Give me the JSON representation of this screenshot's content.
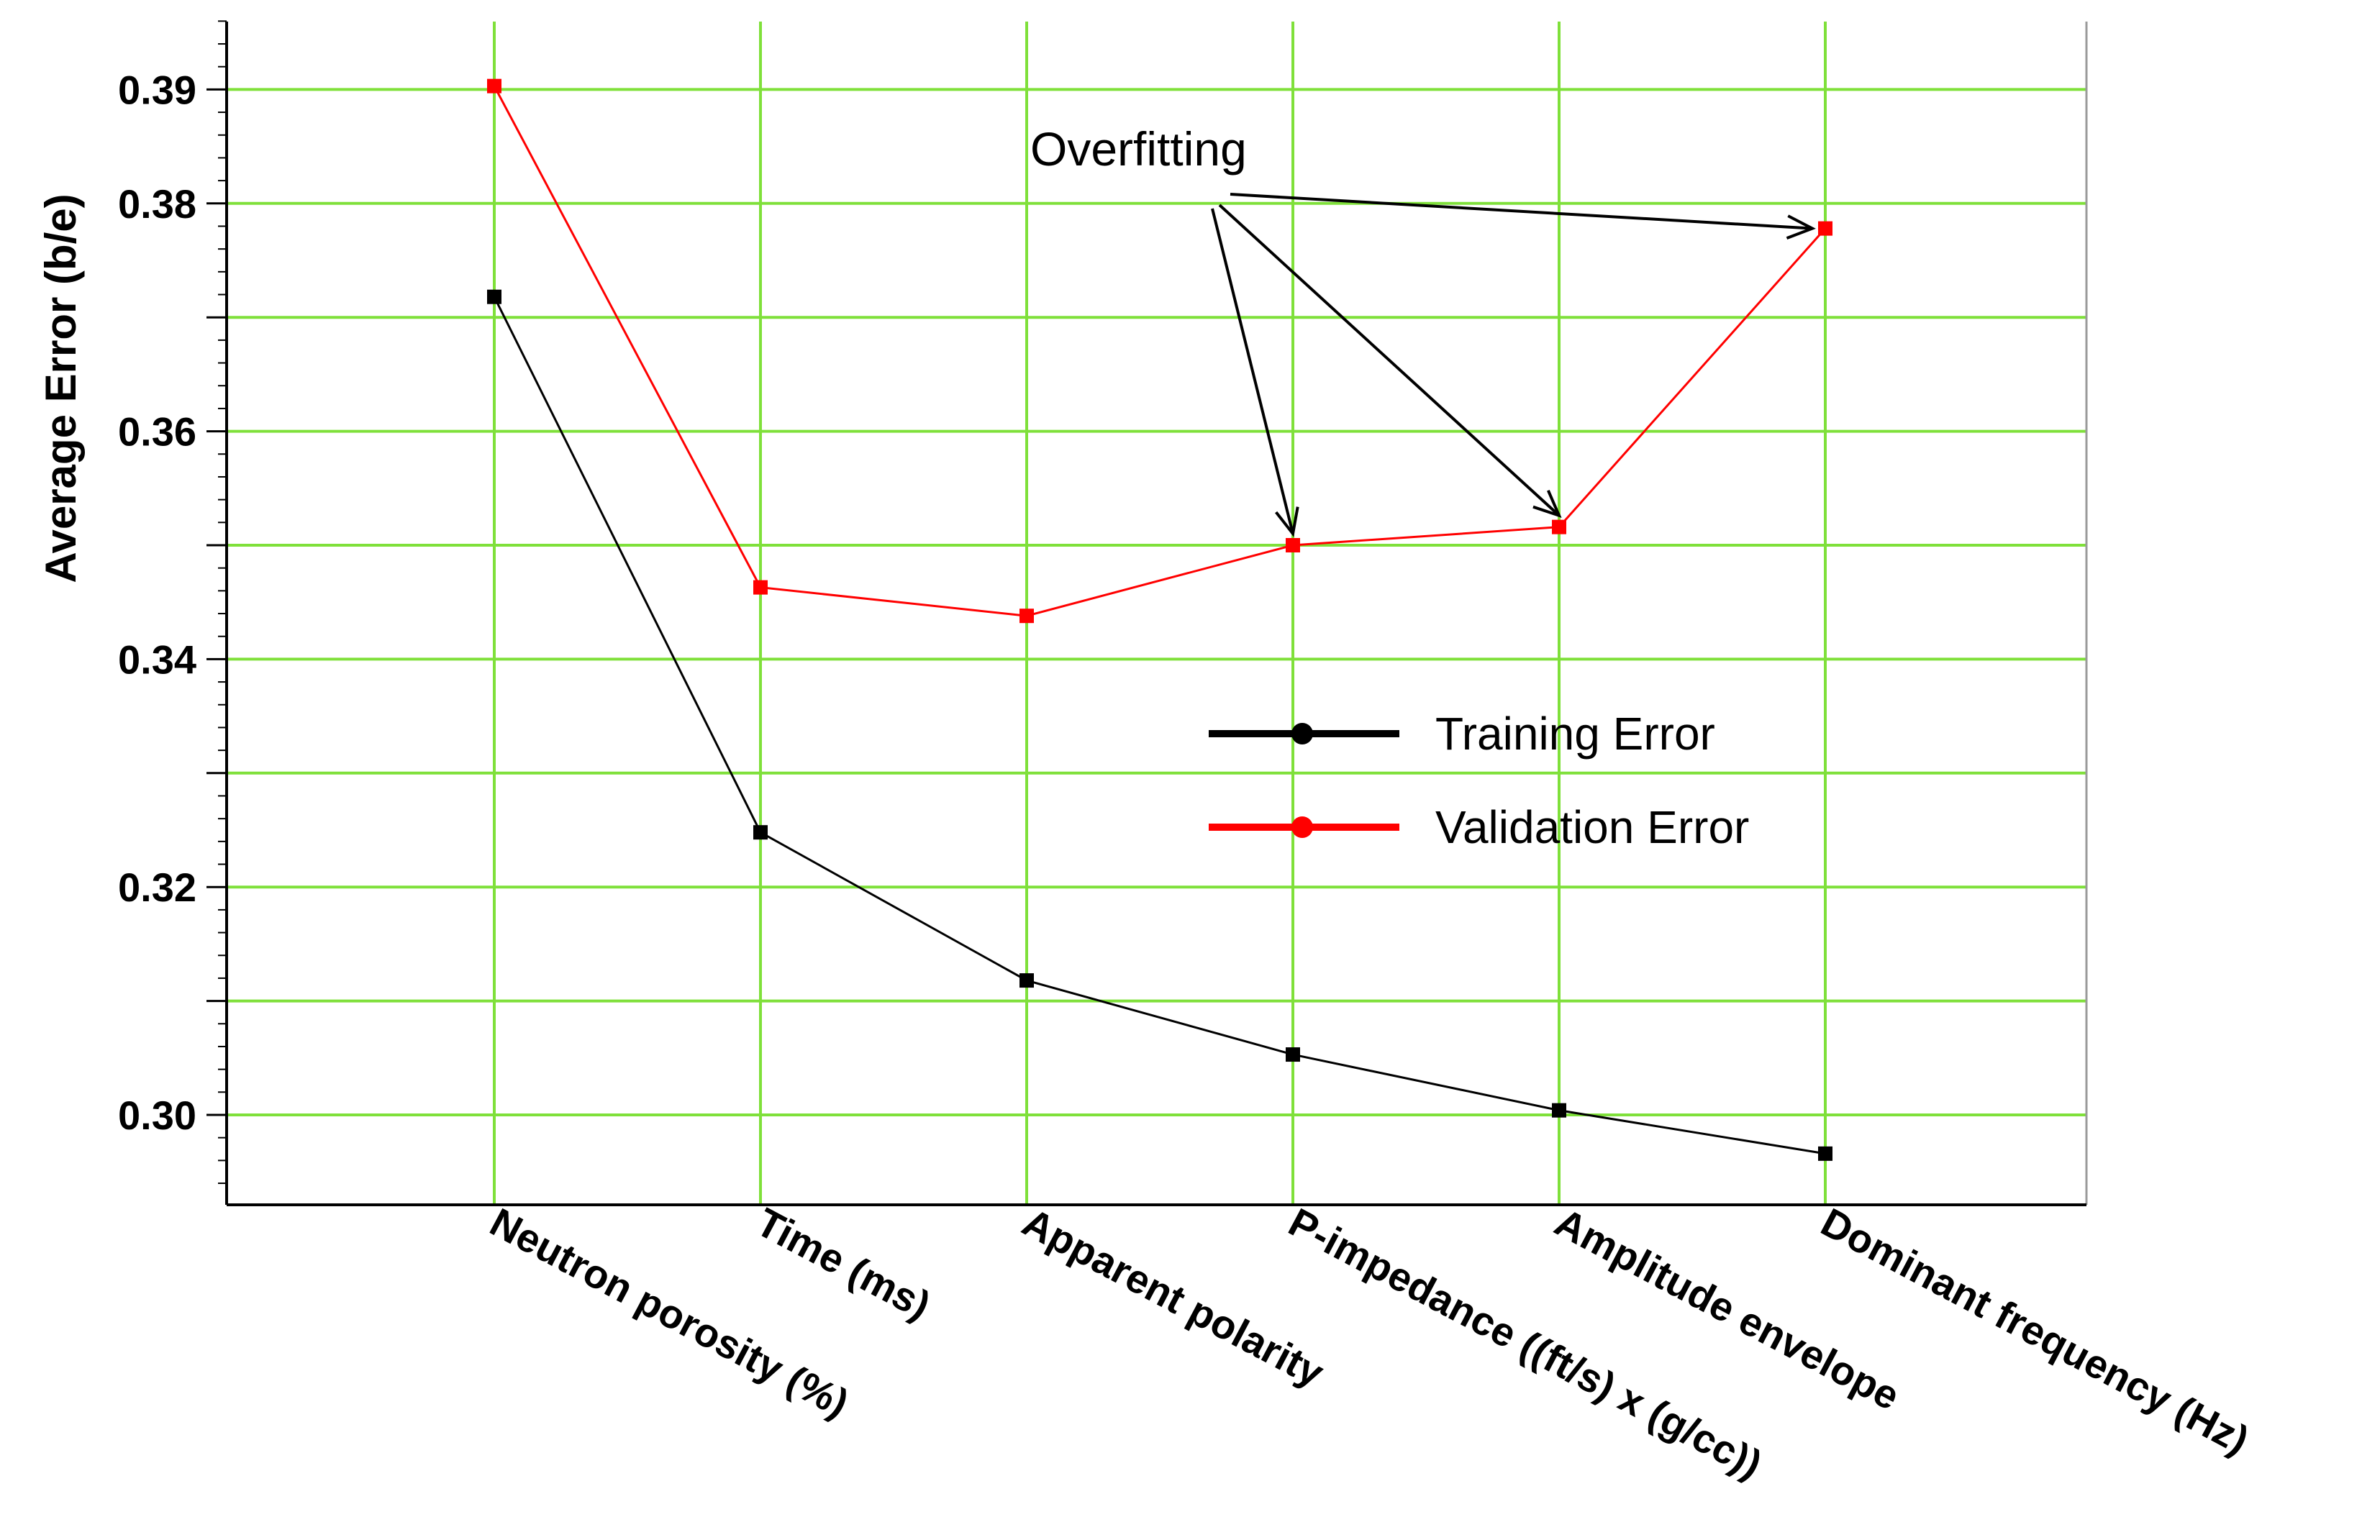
{
  "chart_data": {
    "type": "line",
    "title": "",
    "xlabel": "",
    "ylabel": "Average Error (b/e)",
    "categories": [
      "Neutron porosity (%)",
      "Time (ms)",
      "Apparent polarity",
      "P-impedance ((ft/s) x (g/cc))",
      "Amplitude envelope",
      "Dominant frequency (Hz)"
    ],
    "ylim": [
      0.293,
      0.3965
    ],
    "yticks": [
      0.3,
      0.32,
      0.34,
      0.36,
      0.38,
      0.39
    ],
    "ytick_labels": [
      "0.30",
      "0.32",
      "0.34",
      "0.36",
      "0.38",
      "0.39"
    ],
    "grid": true,
    "legend_position": "center-right",
    "series": [
      {
        "name": "Training Error",
        "color": "#000000",
        "values": [
          0.3718,
          0.3248,
          0.3118,
          0.3053,
          0.3004,
          0.2966
        ]
      },
      {
        "name": "Validation Error",
        "color": "#ff0000",
        "values": [
          0.3903,
          0.3463,
          0.3438,
          0.35,
          0.3516,
          0.3778
        ]
      }
    ],
    "annotation": {
      "text": "Overfitting",
      "targets": [
        3,
        4,
        5
      ]
    },
    "colors": {
      "grid": "#7fe03a",
      "axis": "#000000"
    }
  }
}
